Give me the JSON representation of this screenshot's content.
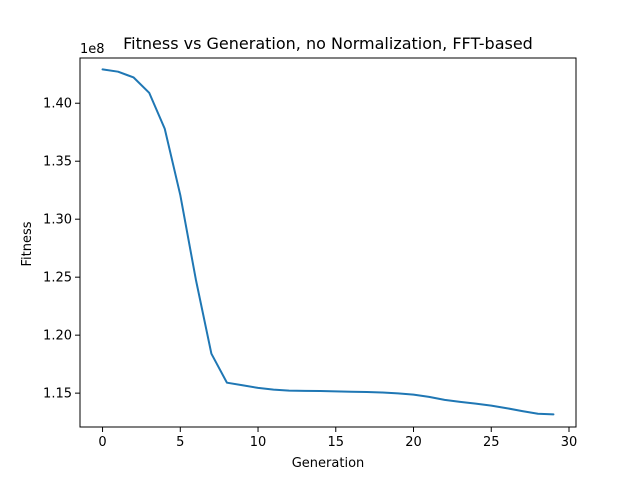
{
  "chart_data": {
    "type": "line",
    "title": "Fitness vs Generation, no Normalization, FFT-based",
    "xlabel": "Generation",
    "ylabel": "Fitness",
    "y_offset_label": "1e8",
    "xlim": [
      -1.45,
      30.45
    ],
    "ylim": [
      1.1208,
      1.439
    ],
    "x_ticks": [
      0,
      5,
      10,
      15,
      20,
      25,
      30
    ],
    "x_tick_labels": [
      "0",
      "5",
      "10",
      "15",
      "20",
      "25",
      "30"
    ],
    "y_ticks": [
      1.15,
      1.2,
      1.25,
      1.3,
      1.35,
      1.4
    ],
    "y_tick_labels": [
      "1.15",
      "1.20",
      "1.25",
      "1.30",
      "1.35",
      "1.40"
    ],
    "grid": false,
    "legend": "none",
    "series": [
      {
        "color": "#1f77b4",
        "x": [
          0,
          1,
          2,
          3,
          4,
          5,
          6,
          7,
          8,
          9,
          10,
          11,
          12,
          13,
          14,
          15,
          16,
          17,
          18,
          19,
          20,
          21,
          22,
          23,
          24,
          25,
          26,
          27,
          28,
          29
        ],
        "y": [
          1.4292,
          1.4272,
          1.4222,
          1.409,
          1.378,
          1.3208,
          1.248,
          1.184,
          1.159,
          1.1568,
          1.1545,
          1.153,
          1.1522,
          1.152,
          1.1518,
          1.1515,
          1.1512,
          1.151,
          1.1505,
          1.1498,
          1.1487,
          1.1468,
          1.1442,
          1.1425,
          1.141,
          1.1392,
          1.137,
          1.1345,
          1.1322,
          1.1317
        ]
      }
    ]
  }
}
